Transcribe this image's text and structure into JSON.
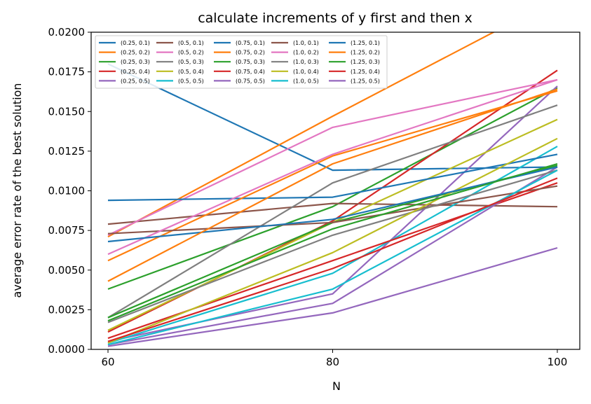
{
  "chart_data": {
    "type": "line",
    "title": "calculate increments of y first and then x",
    "xlabel": "N",
    "ylabel": "average error rate of the best solution",
    "x": [
      60,
      80,
      100
    ],
    "x_ticks": [
      "60",
      "80",
      "100"
    ],
    "y_ticks": [
      "0.0000",
      "0.0025",
      "0.0050",
      "0.0075",
      "0.0100",
      "0.0125",
      "0.0150",
      "0.0175",
      "0.0200"
    ],
    "xlim": [
      58.5,
      102
    ],
    "ylim": [
      0,
      0.02
    ],
    "grid": false,
    "legend": "top-left",
    "legend_columns": 5,
    "series": [
      {
        "name": "(0.25, 0.1)",
        "color": "#1f77b4",
        "values": [
          0.018,
          0.0113,
          0.0115
        ]
      },
      {
        "name": "(0.25, 0.2)",
        "color": "#ff7f0e",
        "values": [
          0.0071,
          0.0147,
          0.0221
        ]
      },
      {
        "name": "(0.25, 0.3)",
        "color": "#2ca02c",
        "values": [
          0.0038,
          0.009,
          0.0165
        ]
      },
      {
        "name": "(0.25, 0.4)",
        "color": "#d62728",
        "values": [
          0.0011,
          0.0081,
          0.0176
        ]
      },
      {
        "name": "(0.25, 0.5)",
        "color": "#9467bd",
        "values": [
          0.0005,
          0.0035,
          0.0166
        ]
      },
      {
        "name": "(0.5, 0.1)",
        "color": "#8c564b",
        "values": [
          0.0079,
          0.0092,
          0.009
        ]
      },
      {
        "name": "(0.5, 0.2)",
        "color": "#e377c2",
        "values": [
          0.0072,
          0.014,
          0.017
        ]
      },
      {
        "name": "(0.5, 0.3)",
        "color": "#7f7f7f",
        "values": [
          0.002,
          0.0105,
          0.0154
        ]
      },
      {
        "name": "(0.5, 0.4)",
        "color": "#bcbd22",
        "values": [
          0.0012,
          0.008,
          0.0145
        ]
      },
      {
        "name": "(0.5, 0.5)",
        "color": "#17becf",
        "values": [
          0.0004,
          0.0048,
          0.0128
        ]
      },
      {
        "name": "(0.75, 0.1)",
        "color": "#1f77b4",
        "values": [
          0.0094,
          0.0096,
          0.0123
        ]
      },
      {
        "name": "(0.75, 0.2)",
        "color": "#ff7f0e",
        "values": [
          0.0056,
          0.0122,
          0.0163
        ]
      },
      {
        "name": "(0.75, 0.3)",
        "color": "#2ca02c",
        "values": [
          0.002,
          0.008,
          0.0116
        ]
      },
      {
        "name": "(0.75, 0.4)",
        "color": "#d62728",
        "values": [
          0.0007,
          0.0056,
          0.0105
        ]
      },
      {
        "name": "(0.75, 0.5)",
        "color": "#9467bd",
        "values": [
          0.0003,
          0.0029,
          0.0115
        ]
      },
      {
        "name": "(1.0, 0.1)",
        "color": "#8c564b",
        "values": [
          0.0073,
          0.008,
          0.0103
        ]
      },
      {
        "name": "(1.0, 0.2)",
        "color": "#e377c2",
        "values": [
          0.006,
          0.0123,
          0.017
        ]
      },
      {
        "name": "(1.0, 0.3)",
        "color": "#7f7f7f",
        "values": [
          0.0017,
          0.0072,
          0.0113
        ]
      },
      {
        "name": "(1.0, 0.4)",
        "color": "#bcbd22",
        "values": [
          0.0004,
          0.0061,
          0.0133
        ]
      },
      {
        "name": "(1.0, 0.5)",
        "color": "#17becf",
        "values": [
          0.0003,
          0.0038,
          0.0113
        ]
      },
      {
        "name": "(1.25, 0.1)",
        "color": "#1f77b4",
        "values": [
          0.0068,
          0.0082,
          0.0115
        ]
      },
      {
        "name": "(1.25, 0.2)",
        "color": "#ff7f0e",
        "values": [
          0.0043,
          0.0117,
          0.0164
        ]
      },
      {
        "name": "(1.25, 0.3)",
        "color": "#2ca02c",
        "values": [
          0.0018,
          0.0076,
          0.0117
        ]
      },
      {
        "name": "(1.25, 0.4)",
        "color": "#d62728",
        "values": [
          0.0005,
          0.0051,
          0.0108
        ]
      },
      {
        "name": "(1.25, 0.5)",
        "color": "#9467bd",
        "values": [
          0.0002,
          0.0023,
          0.0064
        ]
      }
    ]
  }
}
